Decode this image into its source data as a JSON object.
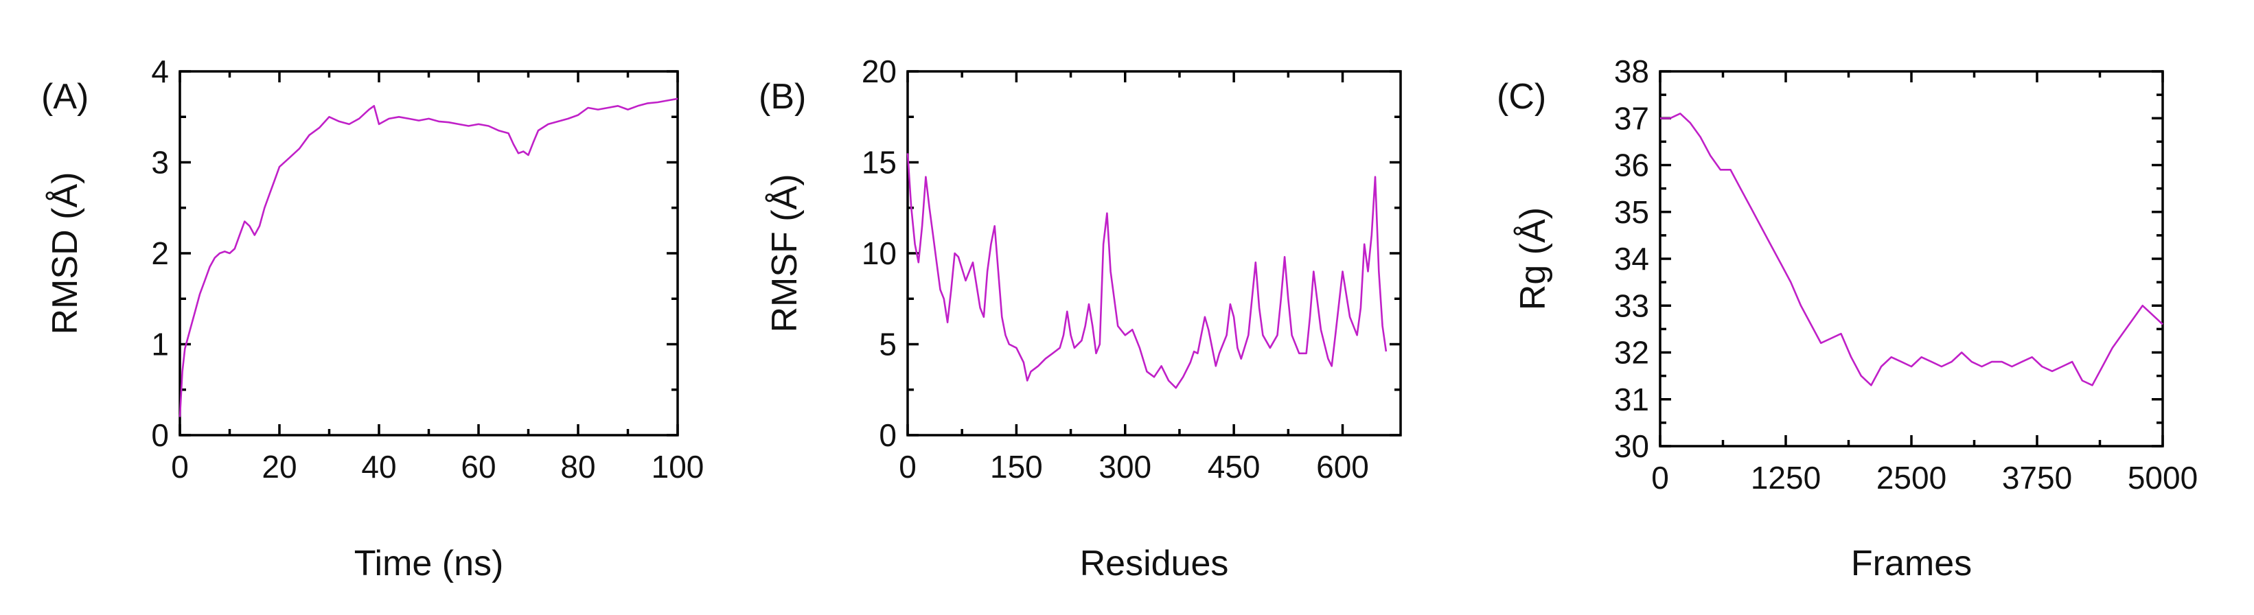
{
  "series_color": "#C020C8",
  "chart_data": [
    {
      "type": "line",
      "panel_label": "(A)",
      "xlabel": "Time (ns)",
      "ylabel": "RMSD (Å)",
      "xlim": [
        0,
        100
      ],
      "ylim": [
        0,
        4
      ],
      "xticks": [
        0,
        20,
        40,
        60,
        80,
        100
      ],
      "yticks": [
        0,
        1,
        2,
        3,
        4
      ],
      "grid": false,
      "series": [
        {
          "x": [
            0,
            0.5,
            1,
            2,
            3,
            4,
            5,
            6,
            7,
            8,
            9,
            10,
            11,
            12,
            13,
            14,
            15,
            16,
            17,
            18,
            19,
            20,
            22,
            24,
            26,
            28,
            30,
            32,
            34,
            36,
            38,
            39,
            40,
            42,
            44,
            46,
            48,
            50,
            52,
            54,
            56,
            58,
            60,
            62,
            64,
            66,
            67,
            68,
            69,
            70,
            71,
            72,
            74,
            76,
            78,
            80,
            82,
            84,
            86,
            88,
            90,
            92,
            94,
            96,
            98,
            100
          ],
          "y": [
            0.2,
            0.7,
            0.95,
            1.15,
            1.35,
            1.55,
            1.7,
            1.85,
            1.95,
            2.0,
            2.02,
            2.0,
            2.05,
            2.2,
            2.35,
            2.3,
            2.2,
            2.3,
            2.5,
            2.65,
            2.8,
            2.95,
            3.05,
            3.15,
            3.3,
            3.38,
            3.5,
            3.45,
            3.42,
            3.48,
            3.58,
            3.62,
            3.42,
            3.48,
            3.5,
            3.48,
            3.46,
            3.48,
            3.45,
            3.44,
            3.42,
            3.4,
            3.42,
            3.4,
            3.35,
            3.32,
            3.2,
            3.1,
            3.12,
            3.08,
            3.22,
            3.35,
            3.42,
            3.45,
            3.48,
            3.52,
            3.6,
            3.58,
            3.6,
            3.62,
            3.58,
            3.62,
            3.65,
            3.66,
            3.68,
            3.7
          ]
        }
      ]
    },
    {
      "type": "line",
      "panel_label": "(B)",
      "xlabel": "Residues",
      "ylabel": "RMSF (Å)",
      "xlim": [
        0,
        680
      ],
      "ylim": [
        0,
        20
      ],
      "xticks": [
        0,
        150,
        300,
        450,
        600
      ],
      "yticks": [
        0,
        5,
        10,
        15,
        20
      ],
      "grid": false,
      "series": [
        {
          "x": [
            0,
            5,
            10,
            15,
            20,
            25,
            30,
            35,
            40,
            45,
            50,
            55,
            60,
            65,
            70,
            80,
            90,
            100,
            105,
            110,
            115,
            120,
            125,
            130,
            135,
            140,
            150,
            160,
            165,
            170,
            180,
            190,
            200,
            210,
            215,
            220,
            225,
            230,
            240,
            245,
            250,
            255,
            260,
            265,
            270,
            275,
            280,
            290,
            300,
            310,
            320,
            330,
            340,
            350,
            360,
            370,
            380,
            390,
            395,
            400,
            405,
            410,
            415,
            420,
            425,
            430,
            440,
            445,
            450,
            455,
            460,
            470,
            480,
            485,
            490,
            500,
            510,
            515,
            520,
            525,
            530,
            540,
            550,
            555,
            560,
            570,
            580,
            585,
            590,
            600,
            610,
            620,
            625,
            630,
            635,
            640,
            645,
            650,
            655,
            660
          ],
          "y": [
            15.5,
            12.5,
            10.5,
            9.5,
            11.5,
            14.2,
            12.5,
            11.0,
            9.5,
            8.0,
            7.5,
            6.2,
            8.0,
            10.0,
            9.8,
            8.5,
            9.5,
            7.0,
            6.5,
            9.0,
            10.5,
            11.5,
            9.0,
            6.5,
            5.5,
            5.0,
            4.8,
            4.0,
            3.0,
            3.5,
            3.8,
            4.2,
            4.5,
            4.8,
            5.5,
            6.8,
            5.5,
            4.8,
            5.2,
            6.0,
            7.2,
            6.0,
            4.5,
            5.0,
            10.5,
            12.2,
            9.0,
            6.0,
            5.5,
            5.8,
            4.8,
            3.5,
            3.2,
            3.8,
            3.0,
            2.6,
            3.2,
            4.0,
            4.6,
            4.5,
            5.5,
            6.5,
            5.8,
            4.8,
            3.8,
            4.5,
            5.5,
            7.2,
            6.5,
            4.8,
            4.2,
            5.5,
            9.5,
            7.0,
            5.5,
            4.8,
            5.5,
            7.5,
            9.8,
            7.5,
            5.5,
            4.5,
            4.5,
            6.5,
            9.0,
            5.8,
            4.2,
            3.8,
            5.5,
            9.0,
            6.5,
            5.5,
            7.0,
            10.5,
            9.0,
            11.0,
            14.2,
            9.0,
            6.0,
            4.6
          ]
        }
      ]
    },
    {
      "type": "line",
      "panel_label": "(C)",
      "xlabel": "Frames",
      "ylabel": "Rg (Å)",
      "xlim": [
        0,
        5000
      ],
      "ylim": [
        30,
        38
      ],
      "xticks": [
        0,
        1250,
        2500,
        3750,
        5000
      ],
      "yticks": [
        30,
        31,
        32,
        33,
        34,
        35,
        36,
        37,
        38
      ],
      "grid": false,
      "series": [
        {
          "x": [
            0,
            100,
            200,
            300,
            400,
            500,
            600,
            700,
            800,
            900,
            1000,
            1100,
            1200,
            1300,
            1400,
            1500,
            1600,
            1700,
            1800,
            1900,
            2000,
            2100,
            2200,
            2300,
            2400,
            2500,
            2600,
            2700,
            2800,
            2900,
            3000,
            3100,
            3200,
            3300,
            3400,
            3500,
            3600,
            3700,
            3800,
            3900,
            4000,
            4100,
            4200,
            4300,
            4400,
            4500,
            4600,
            4700,
            4800,
            4900,
            5000
          ],
          "y": [
            37.0,
            37.0,
            37.1,
            36.9,
            36.6,
            36.2,
            35.9,
            35.9,
            35.5,
            35.1,
            34.7,
            34.3,
            33.9,
            33.5,
            33.0,
            32.6,
            32.2,
            32.3,
            32.4,
            31.9,
            31.5,
            31.3,
            31.7,
            31.9,
            31.8,
            31.7,
            31.9,
            31.8,
            31.7,
            31.8,
            32.0,
            31.8,
            31.7,
            31.8,
            31.8,
            31.7,
            31.8,
            31.9,
            31.7,
            31.6,
            31.7,
            31.8,
            31.4,
            31.3,
            31.7,
            32.1,
            32.4,
            32.7,
            33.0,
            32.8,
            32.6
          ]
        }
      ]
    }
  ]
}
